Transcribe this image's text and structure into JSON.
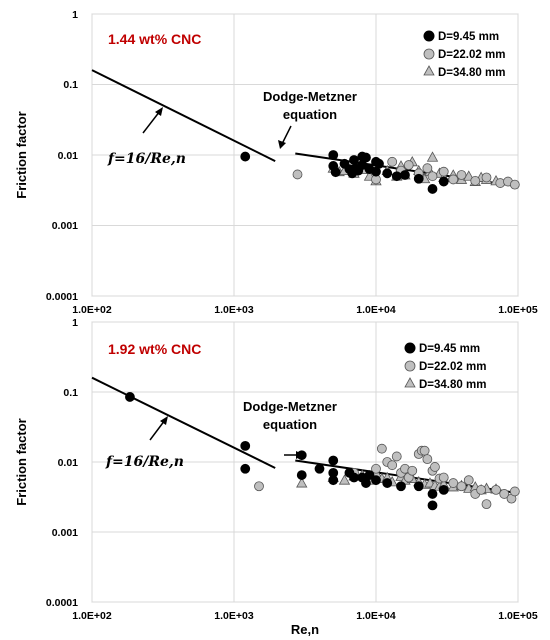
{
  "chart_data": [
    {
      "type": "scatter",
      "title": "1.44 wt% CNC",
      "ylabel": "Friction factor",
      "xlabel": "",
      "xscale": "log",
      "yscale": "log",
      "xlim": [
        100,
        100000
      ],
      "ylim": [
        0.0001,
        1
      ],
      "grid": true,
      "legend_position": "top-right",
      "x_tick_labels": [
        "1.0E+02",
        "1.0E+03",
        "1.0E+04",
        "1.0E+05"
      ],
      "y_tick_labels": [
        "0.0001",
        "0.001",
        "0.01",
        "0.1",
        "1"
      ],
      "annotations": {
        "laminar": "f=16/Re,n",
        "turbulent_1": "Dodge-Metzner",
        "turbulent_2": "equation"
      },
      "lines": [
        {
          "name": "f=16/Re,n",
          "x": [
            100,
            1950
          ],
          "y": [
            0.16,
            0.0082
          ]
        },
        {
          "name": "Dodge-Metzner equation",
          "x": [
            2700,
            100000
          ],
          "y": [
            0.0105,
            0.0036
          ]
        }
      ],
      "series": [
        {
          "name": "D=9.45 mm",
          "marker": "circle",
          "color": "#000000",
          "x": [
            1200,
            5000,
            5000,
            5200,
            6000,
            6500,
            6800,
            7000,
            7200,
            7500,
            8000,
            8000,
            8500,
            9000,
            10000,
            10000,
            10500,
            12000,
            14000,
            16000,
            20000,
            25000,
            30000
          ],
          "y": [
            0.0095,
            0.01,
            0.007,
            0.0057,
            0.0075,
            0.0063,
            0.0055,
            0.0085,
            0.0065,
            0.006,
            0.0095,
            0.0072,
            0.0092,
            0.0063,
            0.008,
            0.0058,
            0.0075,
            0.0055,
            0.005,
            0.0052,
            0.0046,
            0.0033,
            0.0042
          ]
        },
        {
          "name": "D=22.02 mm",
          "marker": "circle",
          "color": "#bfbfbf",
          "x": [
            2800,
            10000,
            13000,
            15000,
            17000,
            20000,
            23000,
            25000,
            30000,
            35000,
            40000,
            50000,
            60000,
            75000,
            85000,
            95000
          ],
          "y": [
            0.0053,
            0.0045,
            0.008,
            0.006,
            0.0072,
            0.0055,
            0.0065,
            0.005,
            0.0058,
            0.0045,
            0.0052,
            0.0043,
            0.0048,
            0.004,
            0.0042,
            0.0038
          ]
        },
        {
          "name": "D=34.80 mm",
          "marker": "triangle",
          "color": "#bfbfbf",
          "x": [
            5000,
            5500,
            6000,
            7000,
            8000,
            9000,
            10000,
            12000,
            14000,
            15000,
            16000,
            18000,
            20000,
            22000,
            24000,
            25000,
            28000,
            30000,
            35000,
            40000,
            45000,
            50000,
            55000,
            60000,
            70000
          ],
          "y": [
            0.0065,
            0.0058,
            0.006,
            0.0055,
            0.0062,
            0.005,
            0.0043,
            0.006,
            0.005,
            0.007,
            0.0052,
            0.008,
            0.006,
            0.0046,
            0.0058,
            0.0093,
            0.0055,
            0.0048,
            0.0052,
            0.0045,
            0.005,
            0.0042,
            0.0048,
            0.0045,
            0.0043
          ]
        }
      ]
    },
    {
      "type": "scatter",
      "title": "1.92 wt% CNC",
      "ylabel": "Friction factor",
      "xlabel": "Re,n",
      "xscale": "log",
      "yscale": "log",
      "xlim": [
        100,
        100000
      ],
      "ylim": [
        0.0001,
        1
      ],
      "grid": true,
      "legend_position": "top-right",
      "x_tick_labels": [
        "1.0E+02",
        "1.0E+03",
        "1.0E+04",
        "1.0E+05"
      ],
      "y_tick_labels": [
        "0.0001",
        "0.001",
        "0.01",
        "0.1",
        "1"
      ],
      "annotations": {
        "laminar": "f=16/Re,n",
        "turbulent_1": "Dodge-Metzner",
        "turbulent_2": "equation"
      },
      "lines": [
        {
          "name": "f=16/Re,n",
          "x": [
            100,
            1950
          ],
          "y": [
            0.16,
            0.0082
          ]
        },
        {
          "name": "Dodge-Metzner equation",
          "x": [
            2700,
            100000
          ],
          "y": [
            0.0105,
            0.0036
          ]
        }
      ],
      "series": [
        {
          "name": "D=9.45 mm",
          "marker": "circle",
          "color": "#000000",
          "x": [
            185,
            1200,
            1200,
            3000,
            3000,
            4000,
            5000,
            5000,
            5000,
            6500,
            7000,
            8000,
            8500,
            9000,
            10000,
            12000,
            15000,
            20000,
            25000,
            25000,
            30000
          ],
          "y": [
            0.085,
            0.017,
            0.008,
            0.0125,
            0.0065,
            0.008,
            0.0105,
            0.007,
            0.0055,
            0.007,
            0.006,
            0.006,
            0.005,
            0.0065,
            0.0055,
            0.005,
            0.0045,
            0.0045,
            0.0035,
            0.0024,
            0.004
          ]
        },
        {
          "name": "D=22.02 mm",
          "marker": "circle",
          "color": "#bfbfbf",
          "x": [
            1500,
            7000,
            8000,
            10000,
            11000,
            12000,
            13000,
            14000,
            15000,
            16000,
            17000,
            18000,
            20000,
            21000,
            22000,
            23000,
            25000,
            26000,
            28000,
            30000,
            35000,
            40000,
            45000,
            50000,
            55000,
            60000,
            70000,
            80000,
            90000,
            95000
          ],
          "y": [
            0.0045,
            0.007,
            0.006,
            0.008,
            0.0155,
            0.01,
            0.009,
            0.012,
            0.007,
            0.008,
            0.006,
            0.0075,
            0.013,
            0.0145,
            0.0145,
            0.011,
            0.0075,
            0.0085,
            0.0058,
            0.006,
            0.005,
            0.0045,
            0.0055,
            0.0035,
            0.004,
            0.0025,
            0.004,
            0.0035,
            0.003,
            0.0038
          ]
        },
        {
          "name": "D=34.80 mm",
          "marker": "triangle",
          "color": "#bfbfbf",
          "x": [
            3000,
            5000,
            6000,
            7000,
            8000,
            9000,
            10000,
            11000,
            12000,
            13000,
            15000,
            16000,
            18000,
            20000,
            22000,
            24000,
            26000,
            28000,
            30000,
            35000,
            40000,
            45000,
            50000,
            55000,
            60000,
            70000
          ],
          "y": [
            0.005,
            0.006,
            0.0055,
            0.0063,
            0.0065,
            0.0055,
            0.007,
            0.0058,
            0.006,
            0.0052,
            0.0062,
            0.0055,
            0.0058,
            0.0052,
            0.0048,
            0.005,
            0.0046,
            0.0045,
            0.0048,
            0.0044,
            0.0046,
            0.0042,
            0.0044,
            0.004,
            0.0042,
            0.0041
          ]
        }
      ]
    }
  ]
}
